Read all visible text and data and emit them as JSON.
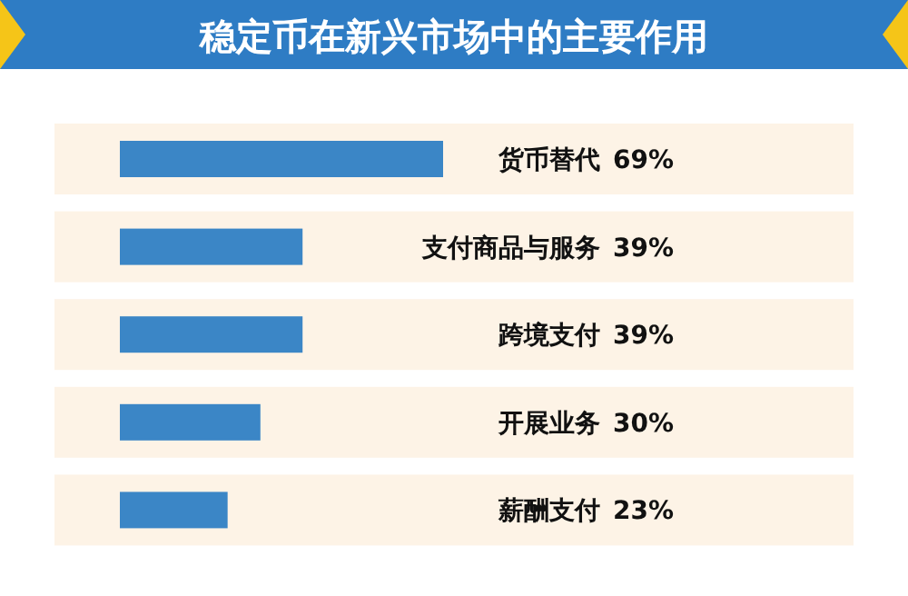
{
  "chart_data": {
    "type": "bar",
    "orientation": "horizontal",
    "title": "稳定币在新兴市场中的主要作用",
    "categories": [
      "货币替代",
      "支付商品与服务",
      "跨境支付",
      "开展业务",
      "薪酬支付"
    ],
    "values": [
      69,
      39,
      39,
      30,
      23
    ],
    "value_labels": [
      "69%",
      "39%",
      "39%",
      "30%",
      "23%"
    ],
    "color": "#3b86c6"
  }
}
